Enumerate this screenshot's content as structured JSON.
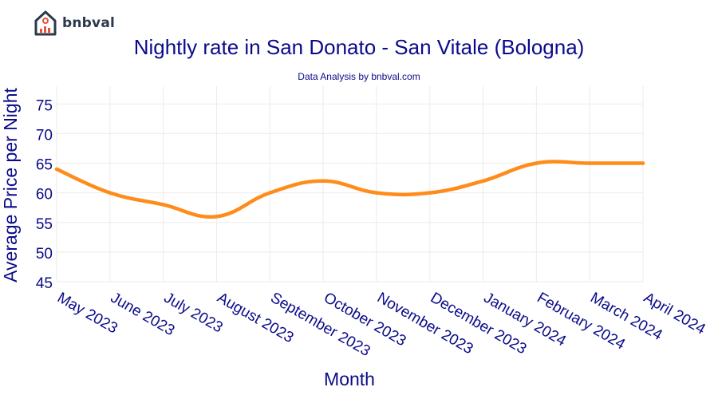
{
  "logo": {
    "text": "bnbval",
    "icon": "house-chart-icon",
    "colors": {
      "house": "#2b3a4a",
      "bars": "#e8523a"
    }
  },
  "chart_data": {
    "type": "line",
    "title": "Nightly rate in San Donato - San Vitale (Bologna)",
    "subtitle": "Data Analysis by bnbval.com",
    "xlabel": "Month",
    "ylabel": "Average Price per Night",
    "categories": [
      "May 2023",
      "June 2023",
      "July 2023",
      "August 2023",
      "September 2023",
      "October 2023",
      "November 2023",
      "December 2023",
      "January 2024",
      "February 2024",
      "March 2024",
      "April 2024"
    ],
    "series": [
      {
        "values": [
          64,
          60,
          58,
          56,
          60,
          62,
          60,
          60,
          62,
          65,
          65,
          65
        ],
        "color": "#ff8c1a"
      }
    ],
    "yticks": [
      45,
      50,
      55,
      60,
      65,
      70,
      75
    ],
    "ylim": [
      45,
      78
    ],
    "grid": true,
    "text_color": "#0b0b8a"
  }
}
